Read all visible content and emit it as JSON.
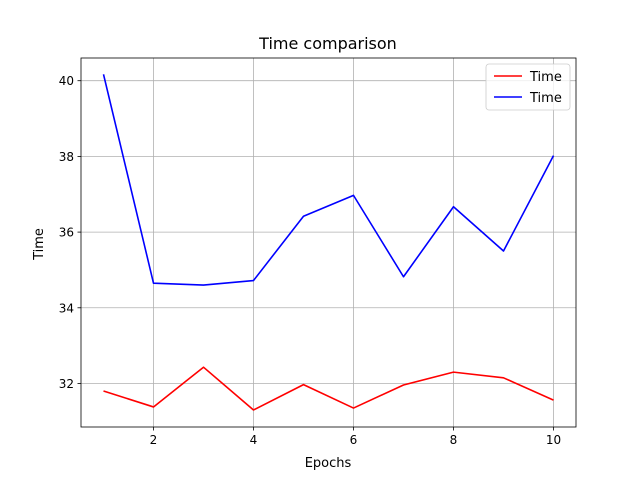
{
  "chart_data": {
    "type": "line",
    "title": "Time comparison",
    "xlabel": "Epochs",
    "ylabel": "Time",
    "x": [
      1,
      2,
      3,
      4,
      5,
      6,
      7,
      8,
      9,
      10
    ],
    "xlim": [
      0.55,
      10.45
    ],
    "ylim": [
      30.85,
      40.6
    ],
    "xticks": [
      2,
      4,
      6,
      8,
      10
    ],
    "yticks": [
      32,
      34,
      36,
      38,
      40
    ],
    "grid": true,
    "legend_position": "top-right",
    "series": [
      {
        "name": "Time",
        "color": "#ff0000",
        "values": [
          31.8,
          31.38,
          32.43,
          31.3,
          31.97,
          31.35,
          31.96,
          32.3,
          32.15,
          31.56
        ]
      },
      {
        "name": "Time",
        "color": "#0000ff",
        "values": [
          40.17,
          34.65,
          34.6,
          34.72,
          36.42,
          36.97,
          34.82,
          36.67,
          35.5,
          38.02
        ]
      }
    ]
  }
}
